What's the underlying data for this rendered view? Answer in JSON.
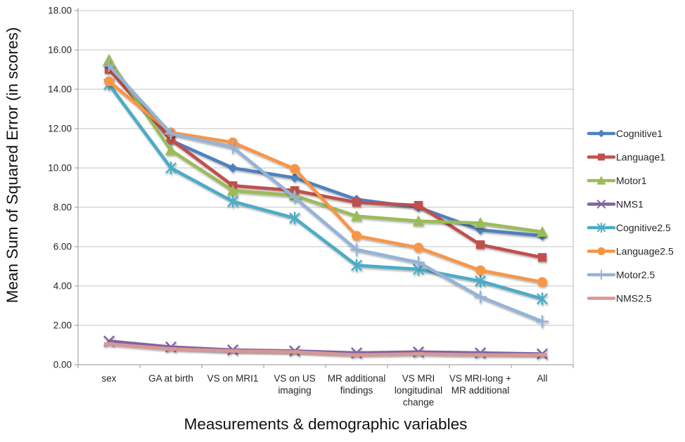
{
  "chart_data": {
    "type": "line",
    "title": "",
    "xlabel": "Measurements & demographic variables",
    "ylabel": "Mean Sum of Squared Error (in scores)",
    "ylim": [
      0,
      18
    ],
    "ytick_step": 2,
    "ytick_labels": [
      "0.00",
      "2.00",
      "4.00",
      "6.00",
      "8.00",
      "10.00",
      "12.00",
      "14.00",
      "16.00",
      "18.00"
    ],
    "grid": true,
    "legend_position": "right",
    "categories": [
      "sex",
      "GA at  birth",
      "VS on MRI1",
      "VS on US\nimaging",
      "MR additional\nfindings",
      "VS MRI\nlongitudinal\nchange",
      "VS MRI-long +\nMR additional",
      "All"
    ],
    "series": [
      {
        "name": "Cognitive1",
        "color": "#4F81BD",
        "marker": "diamond",
        "values": [
          15.25,
          11.4,
          10.0,
          9.5,
          8.4,
          8.0,
          6.85,
          6.55
        ]
      },
      {
        "name": "Language1",
        "color": "#C0504D",
        "marker": "square",
        "values": [
          15.0,
          11.45,
          9.1,
          8.85,
          8.25,
          8.1,
          6.1,
          5.45
        ]
      },
      {
        "name": "Motor1",
        "color": "#9BBB59",
        "marker": "triangle",
        "values": [
          15.5,
          10.9,
          8.85,
          8.6,
          7.55,
          7.3,
          7.2,
          6.75
        ]
      },
      {
        "name": "NMS1",
        "color": "#8064A2",
        "marker": "x",
        "values": [
          1.2,
          0.9,
          0.75,
          0.7,
          0.6,
          0.65,
          0.6,
          0.55
        ]
      },
      {
        "name": "Cognitive2.5",
        "color": "#4BACC6",
        "marker": "star",
        "values": [
          14.25,
          10.0,
          8.3,
          7.45,
          5.05,
          4.85,
          4.25,
          3.35
        ]
      },
      {
        "name": "Language2.5",
        "color": "#F79646",
        "marker": "circle",
        "values": [
          14.4,
          11.8,
          11.3,
          9.95,
          6.55,
          5.95,
          4.8,
          4.2
        ]
      },
      {
        "name": "Motor2.5",
        "color": "#95B3D7",
        "marker": "plus",
        "values": [
          15.2,
          11.75,
          11.05,
          8.5,
          5.85,
          5.2,
          3.45,
          2.2
        ]
      },
      {
        "name": "NMS2.5",
        "color": "#D99694",
        "marker": "dash",
        "values": [
          1.05,
          0.8,
          0.7,
          0.65,
          0.5,
          0.55,
          0.5,
          0.5
        ]
      }
    ],
    "colors": {
      "gridline": "#C3C3C3",
      "axis_line": "#A6A6A6",
      "tick_text": "#262626",
      "title_text": "#111111"
    }
  }
}
